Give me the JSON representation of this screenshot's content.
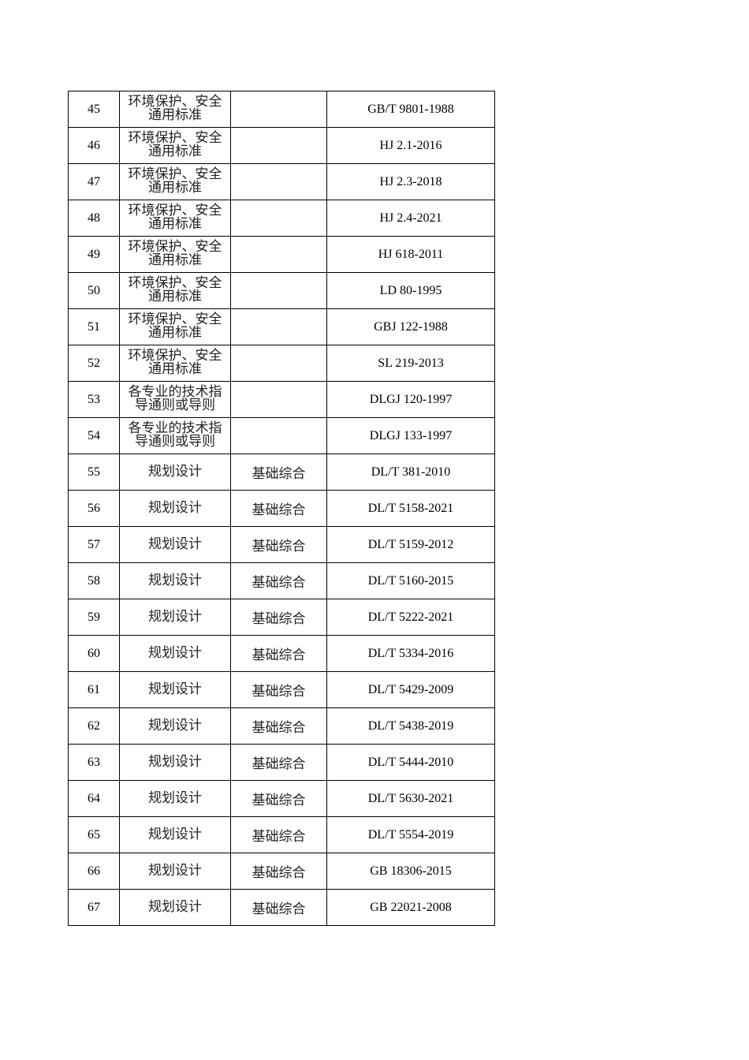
{
  "rows": [
    {
      "no": "45",
      "category": "环境保护、安全通用标准",
      "sub": "",
      "code": "GB/T 9801-1988"
    },
    {
      "no": "46",
      "category": "环境保护、安全通用标准",
      "sub": "",
      "code": "HJ 2.1-2016"
    },
    {
      "no": "47",
      "category": "环境保护、安全通用标准",
      "sub": "",
      "code": "HJ 2.3-2018"
    },
    {
      "no": "48",
      "category": "环境保护、安全通用标准",
      "sub": "",
      "code": "HJ 2.4-2021"
    },
    {
      "no": "49",
      "category": "环境保护、安全通用标准",
      "sub": "",
      "code": "HJ 618-2011"
    },
    {
      "no": "50",
      "category": "环境保护、安全通用标准",
      "sub": "",
      "code": "LD 80-1995"
    },
    {
      "no": "51",
      "category": "环境保护、安全通用标准",
      "sub": "",
      "code": "GBJ 122-1988"
    },
    {
      "no": "52",
      "category": "环境保护、安全通用标准",
      "sub": "",
      "code": "SL 219-2013"
    },
    {
      "no": "53",
      "category": "各专业的技术指导通则或导则",
      "sub": "",
      "code": "DLGJ 120-1997"
    },
    {
      "no": "54",
      "category": "各专业的技术指导通则或导则",
      "sub": "",
      "code": "DLGJ 133-1997"
    },
    {
      "no": "55",
      "category": "规划设计",
      "sub": "基础综合",
      "code": "DL/T 381-2010"
    },
    {
      "no": "56",
      "category": "规划设计",
      "sub": "基础综合",
      "code": "DL/T 5158-2021"
    },
    {
      "no": "57",
      "category": "规划设计",
      "sub": "基础综合",
      "code": "DL/T 5159-2012"
    },
    {
      "no": "58",
      "category": "规划设计",
      "sub": "基础综合",
      "code": "DL/T 5160-2015"
    },
    {
      "no": "59",
      "category": "规划设计",
      "sub": "基础综合",
      "code": "DL/T 5222-2021"
    },
    {
      "no": "60",
      "category": "规划设计",
      "sub": "基础综合",
      "code": "DL/T 5334-2016"
    },
    {
      "no": "61",
      "category": "规划设计",
      "sub": "基础综合",
      "code": "DL/T 5429-2009"
    },
    {
      "no": "62",
      "category": "规划设计",
      "sub": "基础综合",
      "code": "DL/T 5438-2019"
    },
    {
      "no": "63",
      "category": "规划设计",
      "sub": "基础综合",
      "code": "DL/T 5444-2010"
    },
    {
      "no": "64",
      "category": "规划设计",
      "sub": "基础综合",
      "code": "DL/T 5630-2021"
    },
    {
      "no": "65",
      "category": "规划设计",
      "sub": "基础综合",
      "code": "DL/T 5554-2019"
    },
    {
      "no": "66",
      "category": "规划设计",
      "sub": "基础综合",
      "code": "GB 18306-2015"
    },
    {
      "no": "67",
      "category": "规划设计",
      "sub": "基础综合",
      "code": "GB 22021-2008"
    }
  ]
}
